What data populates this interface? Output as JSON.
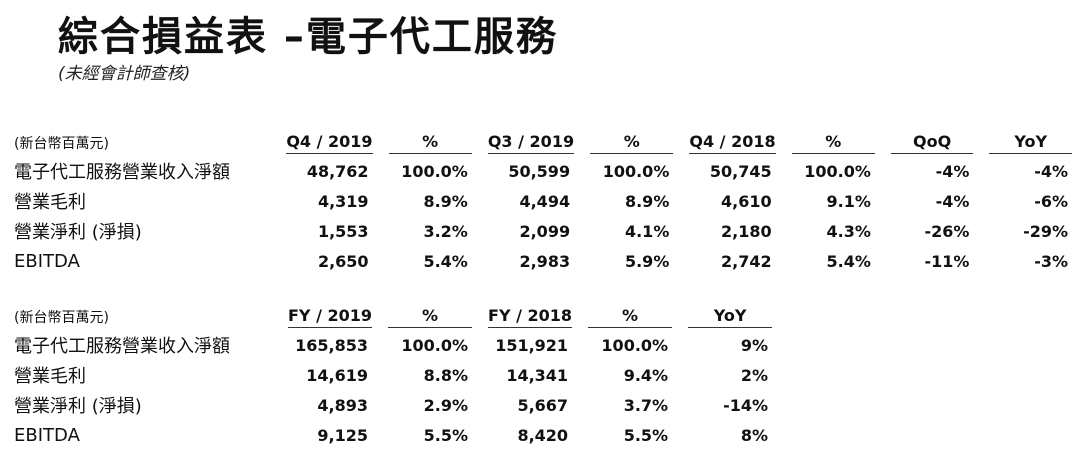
{
  "title": "綜合損益表 –電子代工服務",
  "subtitle": "(未經會計師查核)",
  "quarterly": {
    "unit": "(新台幣百萬元)",
    "headers": [
      "Q4 / 2019",
      "%",
      "Q3 / 2019",
      "%",
      "Q4 / 2018",
      "%",
      "QoQ",
      "YoY"
    ],
    "rows": [
      {
        "label": "電子代工服務營業收入淨額",
        "values": [
          "48,762",
          "100.0%",
          "50,599",
          "100.0%",
          "50,745",
          "100.0%",
          "-4%",
          "-4%"
        ]
      },
      {
        "label": "營業毛利",
        "values": [
          "4,319",
          "8.9%",
          "4,494",
          "8.9%",
          "4,610",
          "9.1%",
          "-4%",
          "-6%"
        ]
      },
      {
        "label": "營業淨利 (淨損)",
        "values": [
          "1,553",
          "3.2%",
          "2,099",
          "4.1%",
          "2,180",
          "4.3%",
          "-26%",
          "-29%"
        ]
      },
      {
        "label": "EBITDA",
        "values": [
          "2,650",
          "5.4%",
          "2,983",
          "5.9%",
          "2,742",
          "5.4%",
          "-11%",
          "-3%"
        ]
      }
    ]
  },
  "annual": {
    "unit": "(新台幣百萬元)",
    "headers": [
      "FY / 2019",
      "%",
      "FY / 2018",
      "%",
      "YoY"
    ],
    "rows": [
      {
        "label": "電子代工服務營業收入淨額",
        "values": [
          "165,853",
          "100.0%",
          "151,921",
          "100.0%",
          "9%"
        ]
      },
      {
        "label": "營業毛利",
        "values": [
          "14,619",
          "8.8%",
          "14,341",
          "9.4%",
          "2%"
        ]
      },
      {
        "label": "營業淨利 (淨損)",
        "values": [
          "4,893",
          "2.9%",
          "5,667",
          "3.7%",
          "-14%"
        ]
      },
      {
        "label": "EBITDA",
        "values": [
          "9,125",
          "5.5%",
          "8,420",
          "5.5%",
          "8%"
        ]
      }
    ]
  }
}
